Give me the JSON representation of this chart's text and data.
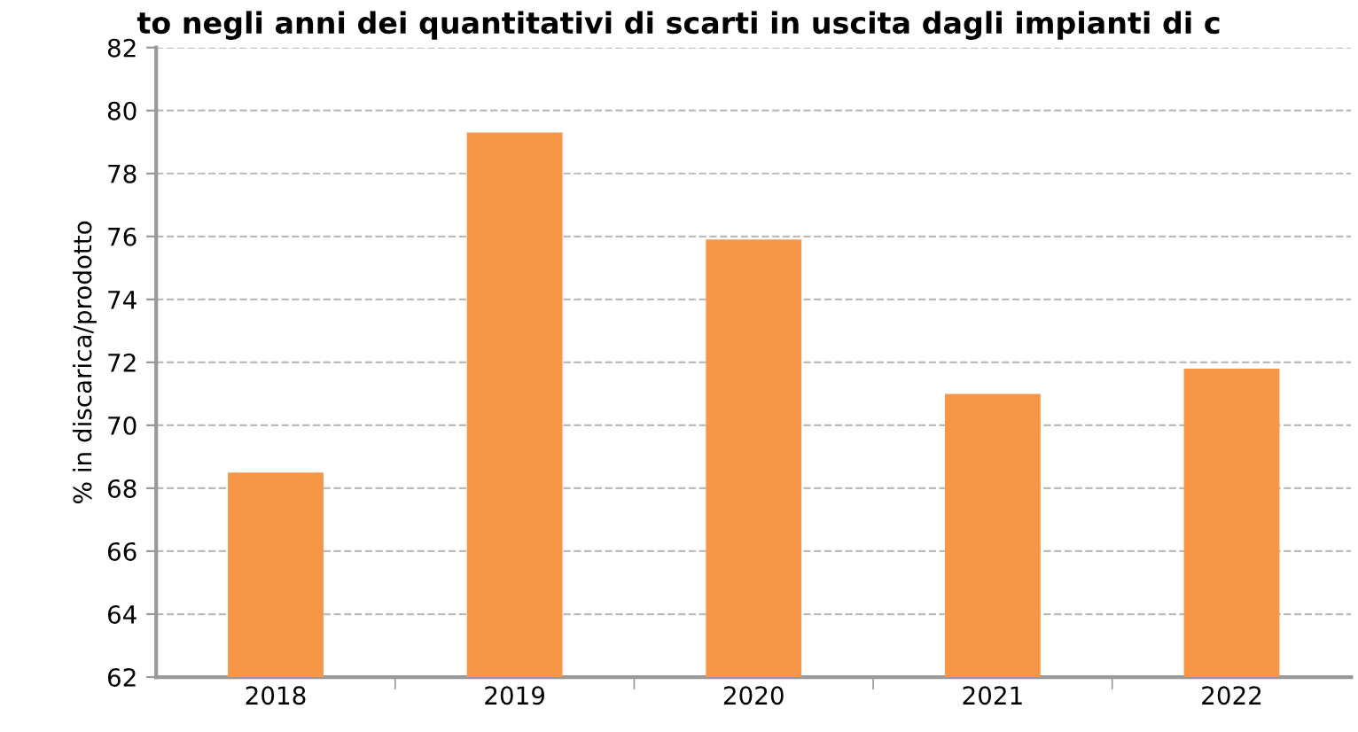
{
  "chart_data": {
    "type": "bar",
    "title": "to negli anni dei quantitativi di scarti in uscita dagli impianti di c",
    "ylabel": "% in discarica/prodotto",
    "categories": [
      "2018",
      "2019",
      "2020",
      "2021",
      "2022"
    ],
    "values": [
      68.5,
      79.3,
      75.9,
      71.0,
      71.8
    ],
    "color": "#f79646",
    "ylim": [
      62,
      82
    ],
    "yticks": [
      62,
      64,
      66,
      68,
      70,
      72,
      74,
      76,
      78,
      80,
      82
    ],
    "grid": "y"
  }
}
